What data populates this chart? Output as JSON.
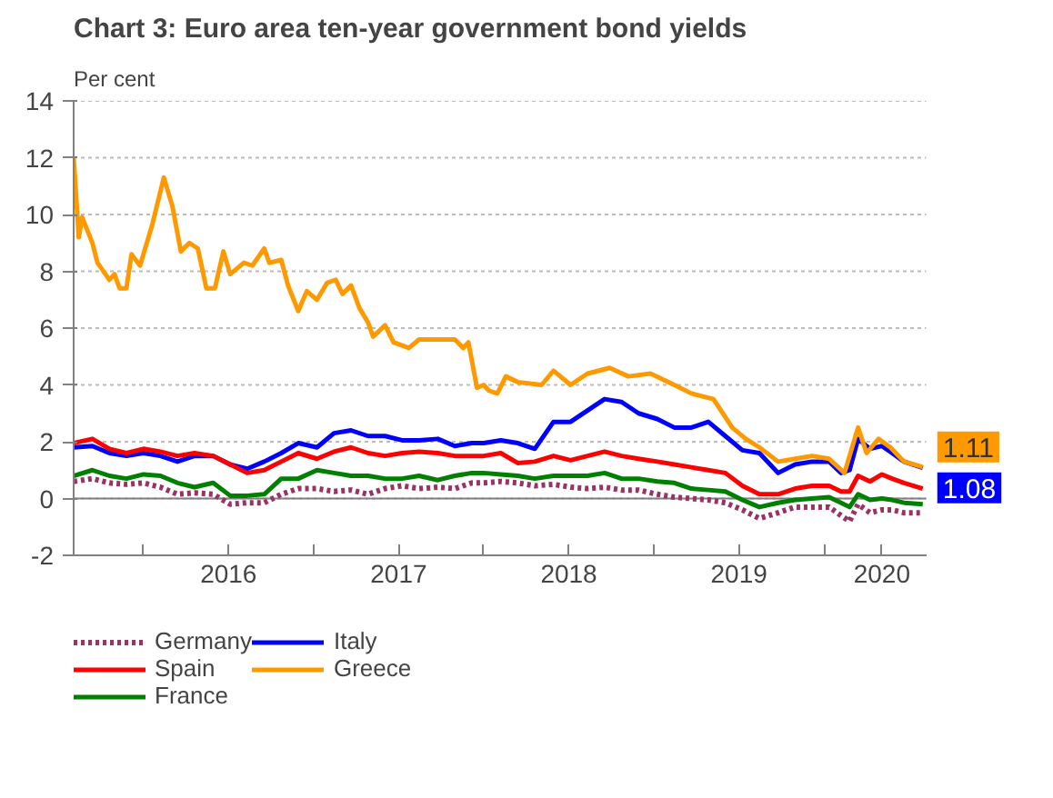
{
  "chart_data": {
    "type": "line",
    "title": "Chart 3: Euro area ten-year government bond yields",
    "ylabel": "Per cent",
    "xlim": [
      2015.59,
      2020.6
    ],
    "ylim": [
      -2,
      14
    ],
    "xticks": [
      {
        "value": 2016,
        "label": null
      },
      {
        "value": 2016.5,
        "label": "2016"
      },
      {
        "value": 2017,
        "label": null
      },
      {
        "value": 2017.5,
        "label": "2017"
      },
      {
        "value": 2018,
        "label": null
      },
      {
        "value": 2018.5,
        "label": "2018"
      },
      {
        "value": 2019,
        "label": null
      },
      {
        "value": 2019.5,
        "label": "2019"
      },
      {
        "value": 2020,
        "label": null
      },
      {
        "value": 2020.34,
        "label": "2020"
      }
    ],
    "yticks": [
      -2,
      0,
      2,
      4,
      6,
      8,
      10,
      12,
      14
    ],
    "grid": "y",
    "legend": "bottom",
    "ref_lines": [
      {
        "axis": "y",
        "value": 0,
        "label": null,
        "color": "#808080"
      }
    ],
    "x": [
      2015.59,
      2015.7,
      2015.8,
      2015.9,
      2016.0,
      2016.1,
      2016.2,
      2016.3,
      2016.41,
      2016.51,
      2016.61,
      2016.71,
      2016.81,
      2016.91,
      2017.02,
      2017.12,
      2017.22,
      2017.32,
      2017.42,
      2017.52,
      2017.62,
      2017.73,
      2017.83,
      2017.93,
      2018.0,
      2018.1,
      2018.2,
      2018.3,
      2018.41,
      2018.51,
      2018.61,
      2018.71,
      2018.81,
      2018.91,
      2019.02,
      2019.12,
      2019.22,
      2019.32,
      2019.42,
      2019.52,
      2019.62,
      2019.73,
      2019.83,
      2019.93,
      2020.03,
      2020.1,
      2020.15,
      2020.2,
      2020.27,
      2020.34,
      2020.4,
      2020.47,
      2020.58
    ],
    "series": [
      {
        "name": "Germany",
        "color": "#993366",
        "line_style": "dotted",
        "values": [
          0.6,
          0.7,
          0.55,
          0.5,
          0.55,
          0.4,
          0.15,
          0.2,
          0.15,
          -0.2,
          -0.15,
          -0.15,
          0.15,
          0.35,
          0.35,
          0.25,
          0.3,
          0.15,
          0.35,
          0.45,
          0.35,
          0.4,
          0.35,
          0.55,
          0.55,
          0.6,
          0.55,
          0.45,
          0.5,
          0.4,
          0.35,
          0.4,
          0.3,
          0.3,
          0.15,
          0.05,
          0.0,
          -0.05,
          -0.15,
          -0.4,
          -0.7,
          -0.5,
          -0.3,
          -0.3,
          -0.3,
          -0.6,
          -0.8,
          -0.2,
          -0.5,
          -0.4,
          -0.4,
          -0.5,
          -0.5
        ]
      },
      {
        "name": "Italy",
        "color": "#0000ff",
        "values": [
          1.8,
          1.85,
          1.6,
          1.5,
          1.6,
          1.5,
          1.3,
          1.5,
          1.5,
          1.2,
          1.05,
          1.3,
          1.6,
          1.95,
          1.8,
          2.3,
          2.4,
          2.2,
          2.2,
          2.05,
          2.05,
          2.1,
          1.85,
          1.95,
          1.95,
          2.05,
          1.95,
          1.75,
          2.7,
          2.7,
          3.1,
          3.5,
          3.4,
          3.0,
          2.8,
          2.5,
          2.5,
          2.7,
          2.2,
          1.7,
          1.6,
          0.9,
          1.2,
          1.3,
          1.3,
          0.9,
          1.0,
          2.1,
          1.75,
          1.85,
          1.6,
          1.3,
          1.08
        ],
        "value_labels": [
          null,
          null,
          null,
          null,
          null,
          null,
          null,
          null,
          null,
          null,
          null,
          null,
          null,
          null,
          null,
          null,
          null,
          null,
          null,
          null,
          null,
          null,
          null,
          null,
          null,
          null,
          null,
          null,
          null,
          null,
          null,
          null,
          null,
          null,
          null,
          null,
          null,
          null,
          null,
          null,
          null,
          null,
          null,
          null,
          null,
          null,
          null,
          null,
          null,
          null,
          null,
          null,
          "1.08"
        ]
      },
      {
        "name": "Spain",
        "color": "#ff0000",
        "values": [
          1.95,
          2.1,
          1.75,
          1.6,
          1.75,
          1.65,
          1.5,
          1.6,
          1.5,
          1.2,
          0.9,
          1.0,
          1.3,
          1.6,
          1.4,
          1.65,
          1.8,
          1.6,
          1.5,
          1.6,
          1.65,
          1.6,
          1.5,
          1.5,
          1.5,
          1.6,
          1.25,
          1.3,
          1.5,
          1.35,
          1.5,
          1.65,
          1.5,
          1.4,
          1.3,
          1.2,
          1.1,
          1.0,
          0.9,
          0.45,
          0.15,
          0.15,
          0.35,
          0.45,
          0.45,
          0.25,
          0.25,
          0.8,
          0.6,
          0.85,
          0.7,
          0.55,
          0.35
        ]
      },
      {
        "name": "Greece",
        "color": "#ff9900",
        "x": [
          2015.59,
          2015.62,
          2015.64,
          2015.7,
          2015.73,
          2015.8,
          2015.83,
          2015.86,
          2015.9,
          2015.93,
          2015.98,
          2016.05,
          2016.12,
          2016.17,
          2016.22,
          2016.27,
          2016.32,
          2016.37,
          2016.42,
          2016.47,
          2016.51,
          2016.59,
          2016.64,
          2016.71,
          2016.74,
          2016.81,
          2016.85,
          2016.91,
          2016.96,
          2017.02,
          2017.08,
          2017.13,
          2017.17,
          2017.22,
          2017.27,
          2017.32,
          2017.35,
          2017.42,
          2017.47,
          2017.56,
          2017.62,
          2017.73,
          2017.83,
          2017.88,
          2017.91,
          2017.96,
          2018.0,
          2018.03,
          2018.08,
          2018.13,
          2018.2,
          2018.34,
          2018.41,
          2018.51,
          2018.61,
          2018.74,
          2018.85,
          2018.98,
          2019.12,
          2019.22,
          2019.35,
          2019.46,
          2019.54,
          2019.62,
          2019.73,
          2019.83,
          2019.93,
          2020.03,
          2020.12,
          2020.2,
          2020.25,
          2020.32,
          2020.39,
          2020.47,
          2020.58
        ],
        "values": [
          12.0,
          9.2,
          9.9,
          9.0,
          8.3,
          7.7,
          7.9,
          7.4,
          7.4,
          8.6,
          8.2,
          9.6,
          11.3,
          10.3,
          8.7,
          9.0,
          8.8,
          7.4,
          7.4,
          8.7,
          7.9,
          8.3,
          8.2,
          8.8,
          8.3,
          8.4,
          7.5,
          6.6,
          7.3,
          7.0,
          7.6,
          7.7,
          7.2,
          7.5,
          6.7,
          6.2,
          5.7,
          6.1,
          5.5,
          5.3,
          5.6,
          5.6,
          5.6,
          5.3,
          5.5,
          3.9,
          4.0,
          3.8,
          3.7,
          4.3,
          4.1,
          4.0,
          4.5,
          4.0,
          4.4,
          4.6,
          4.3,
          4.4,
          4.0,
          3.7,
          3.5,
          2.5,
          2.1,
          1.8,
          1.3,
          1.4,
          1.5,
          1.4,
          0.9,
          2.5,
          1.6,
          2.1,
          1.8,
          1.3,
          1.11
        ],
        "value_labels": [
          null,
          null,
          null,
          null,
          null,
          null,
          null,
          null,
          null,
          null,
          null,
          null,
          null,
          null,
          null,
          null,
          null,
          null,
          null,
          null,
          null,
          null,
          null,
          null,
          null,
          null,
          null,
          null,
          null,
          null,
          null,
          null,
          null,
          null,
          null,
          null,
          null,
          null,
          null,
          null,
          null,
          null,
          null,
          null,
          null,
          null,
          null,
          null,
          null,
          null,
          null,
          null,
          null,
          null,
          null,
          null,
          null,
          null,
          null,
          null,
          null,
          null,
          null,
          null,
          null,
          null,
          null,
          null,
          null,
          null,
          null,
          null,
          null,
          null,
          "1.11"
        ]
      },
      {
        "name": "France",
        "color": "#008000",
        "values": [
          0.8,
          1.0,
          0.8,
          0.7,
          0.85,
          0.8,
          0.55,
          0.4,
          0.55,
          0.1,
          0.1,
          0.15,
          0.7,
          0.7,
          1.0,
          0.9,
          0.8,
          0.8,
          0.7,
          0.7,
          0.8,
          0.65,
          0.8,
          0.9,
          0.9,
          0.85,
          0.8,
          0.7,
          0.8,
          0.8,
          0.8,
          0.9,
          0.7,
          0.7,
          0.6,
          0.55,
          0.35,
          0.3,
          0.25,
          -0.05,
          -0.3,
          -0.15,
          -0.05,
          0.0,
          0.05,
          -0.15,
          -0.3,
          0.15,
          -0.05,
          0.0,
          -0.05,
          -0.15,
          -0.2
        ]
      }
    ]
  }
}
